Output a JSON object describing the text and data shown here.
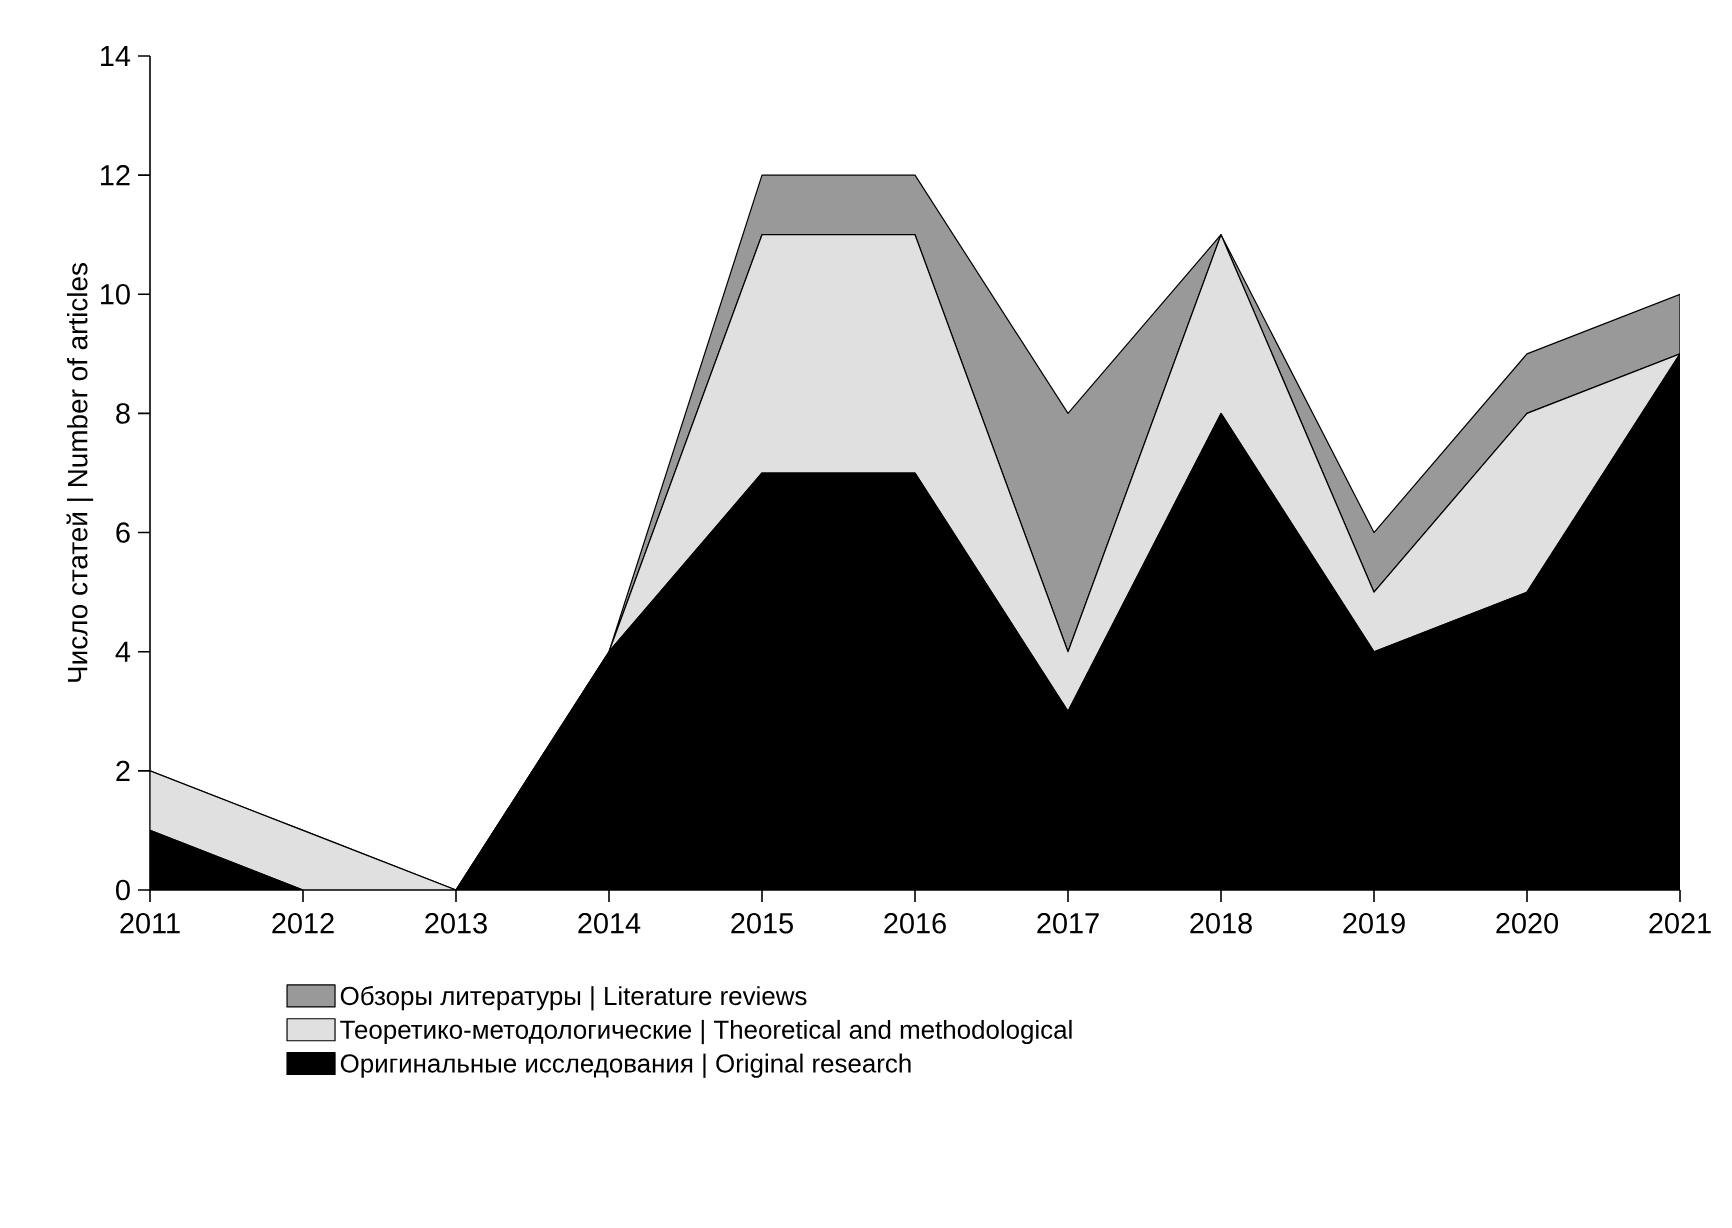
{
  "chart_data": {
    "type": "area",
    "stacked": true,
    "ylabel": "Число статей | Number of articles",
    "x": [
      2011,
      2012,
      2013,
      2014,
      2015,
      2016,
      2017,
      2018,
      2019,
      2020,
      2021
    ],
    "xlim": [
      2011,
      2021
    ],
    "xticks": [
      2011,
      2012,
      2013,
      2014,
      2015,
      2016,
      2017,
      2018,
      2019,
      2020,
      2021
    ],
    "ylim": [
      0,
      14
    ],
    "yticks": [
      0,
      2,
      4,
      6,
      8,
      10,
      12,
      14
    ],
    "grid": false,
    "legend": "bottom",
    "series": [
      {
        "name": "Оригинальные исследования | Original research",
        "color": "#000000",
        "values": [
          1,
          0,
          0,
          4,
          7,
          7,
          3,
          8,
          4,
          5,
          9
        ]
      },
      {
        "name": "Теоретико-методологические | Theoretical and methodological",
        "color": "#e0e0e0",
        "values": [
          1,
          1,
          0,
          0,
          4,
          4,
          1,
          3,
          1,
          3,
          0
        ]
      },
      {
        "name": "Обзоры литературы | Literature reviews",
        "color": "#999999",
        "values": [
          0,
          0,
          0,
          0,
          1,
          1,
          4,
          0,
          1,
          1,
          1
        ]
      }
    ]
  }
}
